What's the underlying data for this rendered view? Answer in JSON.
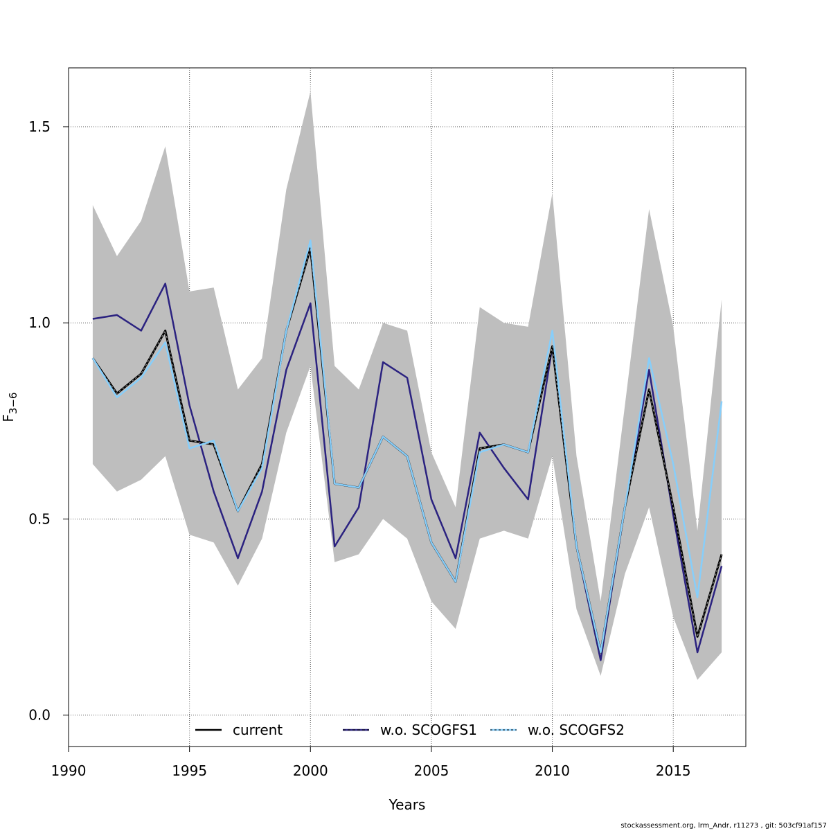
{
  "chart_data": {
    "type": "line",
    "xlabel": "Years",
    "ylabel": {
      "base": "F",
      "subscript": "3−6"
    },
    "xlim": [
      1990,
      2018
    ],
    "ylim": [
      -0.08,
      1.65
    ],
    "xticks": [
      1990,
      1995,
      2000,
      2005,
      2010,
      2015
    ],
    "yticks": [
      0.0,
      0.5,
      1.0,
      1.5
    ],
    "ytick_labels": [
      "0.0",
      "0.5",
      "1.0",
      "1.5"
    ],
    "grid": true,
    "legend_position": "bottom",
    "years": [
      1991,
      1992,
      1993,
      1994,
      1995,
      1996,
      1997,
      1998,
      1999,
      2000,
      2001,
      2002,
      2003,
      2004,
      2005,
      2006,
      2007,
      2008,
      2009,
      2010,
      2011,
      2012,
      2013,
      2014,
      2015,
      2016,
      2017
    ],
    "ci_band": {
      "color": "#bebebe",
      "upper": [
        1.3,
        1.17,
        1.26,
        1.45,
        1.08,
        1.09,
        0.83,
        0.91,
        1.34,
        1.59,
        0.89,
        0.83,
        1.0,
        0.98,
        0.67,
        0.53,
        1.04,
        1.0,
        0.99,
        1.33,
        0.66,
        0.29,
        0.79,
        1.29,
        0.99,
        0.47,
        1.06
      ],
      "lower": [
        0.64,
        0.57,
        0.6,
        0.66,
        0.46,
        0.44,
        0.33,
        0.45,
        0.72,
        0.89,
        0.39,
        0.41,
        0.5,
        0.45,
        0.29,
        0.22,
        0.45,
        0.47,
        0.45,
        0.66,
        0.27,
        0.1,
        0.36,
        0.53,
        0.25,
        0.09,
        0.16
      ]
    },
    "series": [
      {
        "name": "current",
        "color": "#000000",
        "style": "solid",
        "width": 3,
        "values": [
          0.91,
          0.82,
          0.87,
          0.98,
          0.7,
          0.69,
          0.52,
          0.64,
          0.98,
          1.19,
          0.59,
          0.58,
          0.71,
          0.66,
          0.44,
          0.34,
          0.68,
          0.69,
          0.67,
          0.94,
          0.43,
          0.16,
          0.53,
          0.83,
          0.53,
          0.2,
          0.41
        ]
      },
      {
        "name": "w.o. SCOGFS1",
        "color": "#2b2280",
        "style": "solid",
        "width": 2.5,
        "values": [
          1.01,
          1.02,
          0.98,
          1.1,
          0.79,
          0.57,
          0.4,
          0.57,
          0.88,
          1.05,
          0.43,
          0.53,
          0.9,
          0.86,
          0.55,
          0.4,
          0.72,
          0.63,
          0.55,
          0.94,
          0.43,
          0.14,
          0.53,
          0.88,
          0.51,
          0.16,
          0.38
        ]
      },
      {
        "name": "w.o. SCOGFS2",
        "color": "#87cefa",
        "style": "solid",
        "width": 2.5,
        "values": [
          0.91,
          0.81,
          0.86,
          0.95,
          0.68,
          0.7,
          0.52,
          0.63,
          0.98,
          1.21,
          0.59,
          0.58,
          0.71,
          0.66,
          0.44,
          0.34,
          0.67,
          0.69,
          0.67,
          0.98,
          0.43,
          0.16,
          0.53,
          0.91,
          0.64,
          0.3,
          0.8
        ]
      }
    ]
  },
  "legend": [
    {
      "label": "current",
      "color": "#000000",
      "dash": ""
    },
    {
      "label": "w.o. SCOGFS1",
      "color": "#2b2280",
      "dash": "4,3"
    },
    {
      "label": "w.o. SCOGFS2",
      "color": "#87cefa",
      "dash": "3,3"
    }
  ],
  "footer": "stockassessment.org, lrm_Andr, r11273 , git: 503cf91af157"
}
